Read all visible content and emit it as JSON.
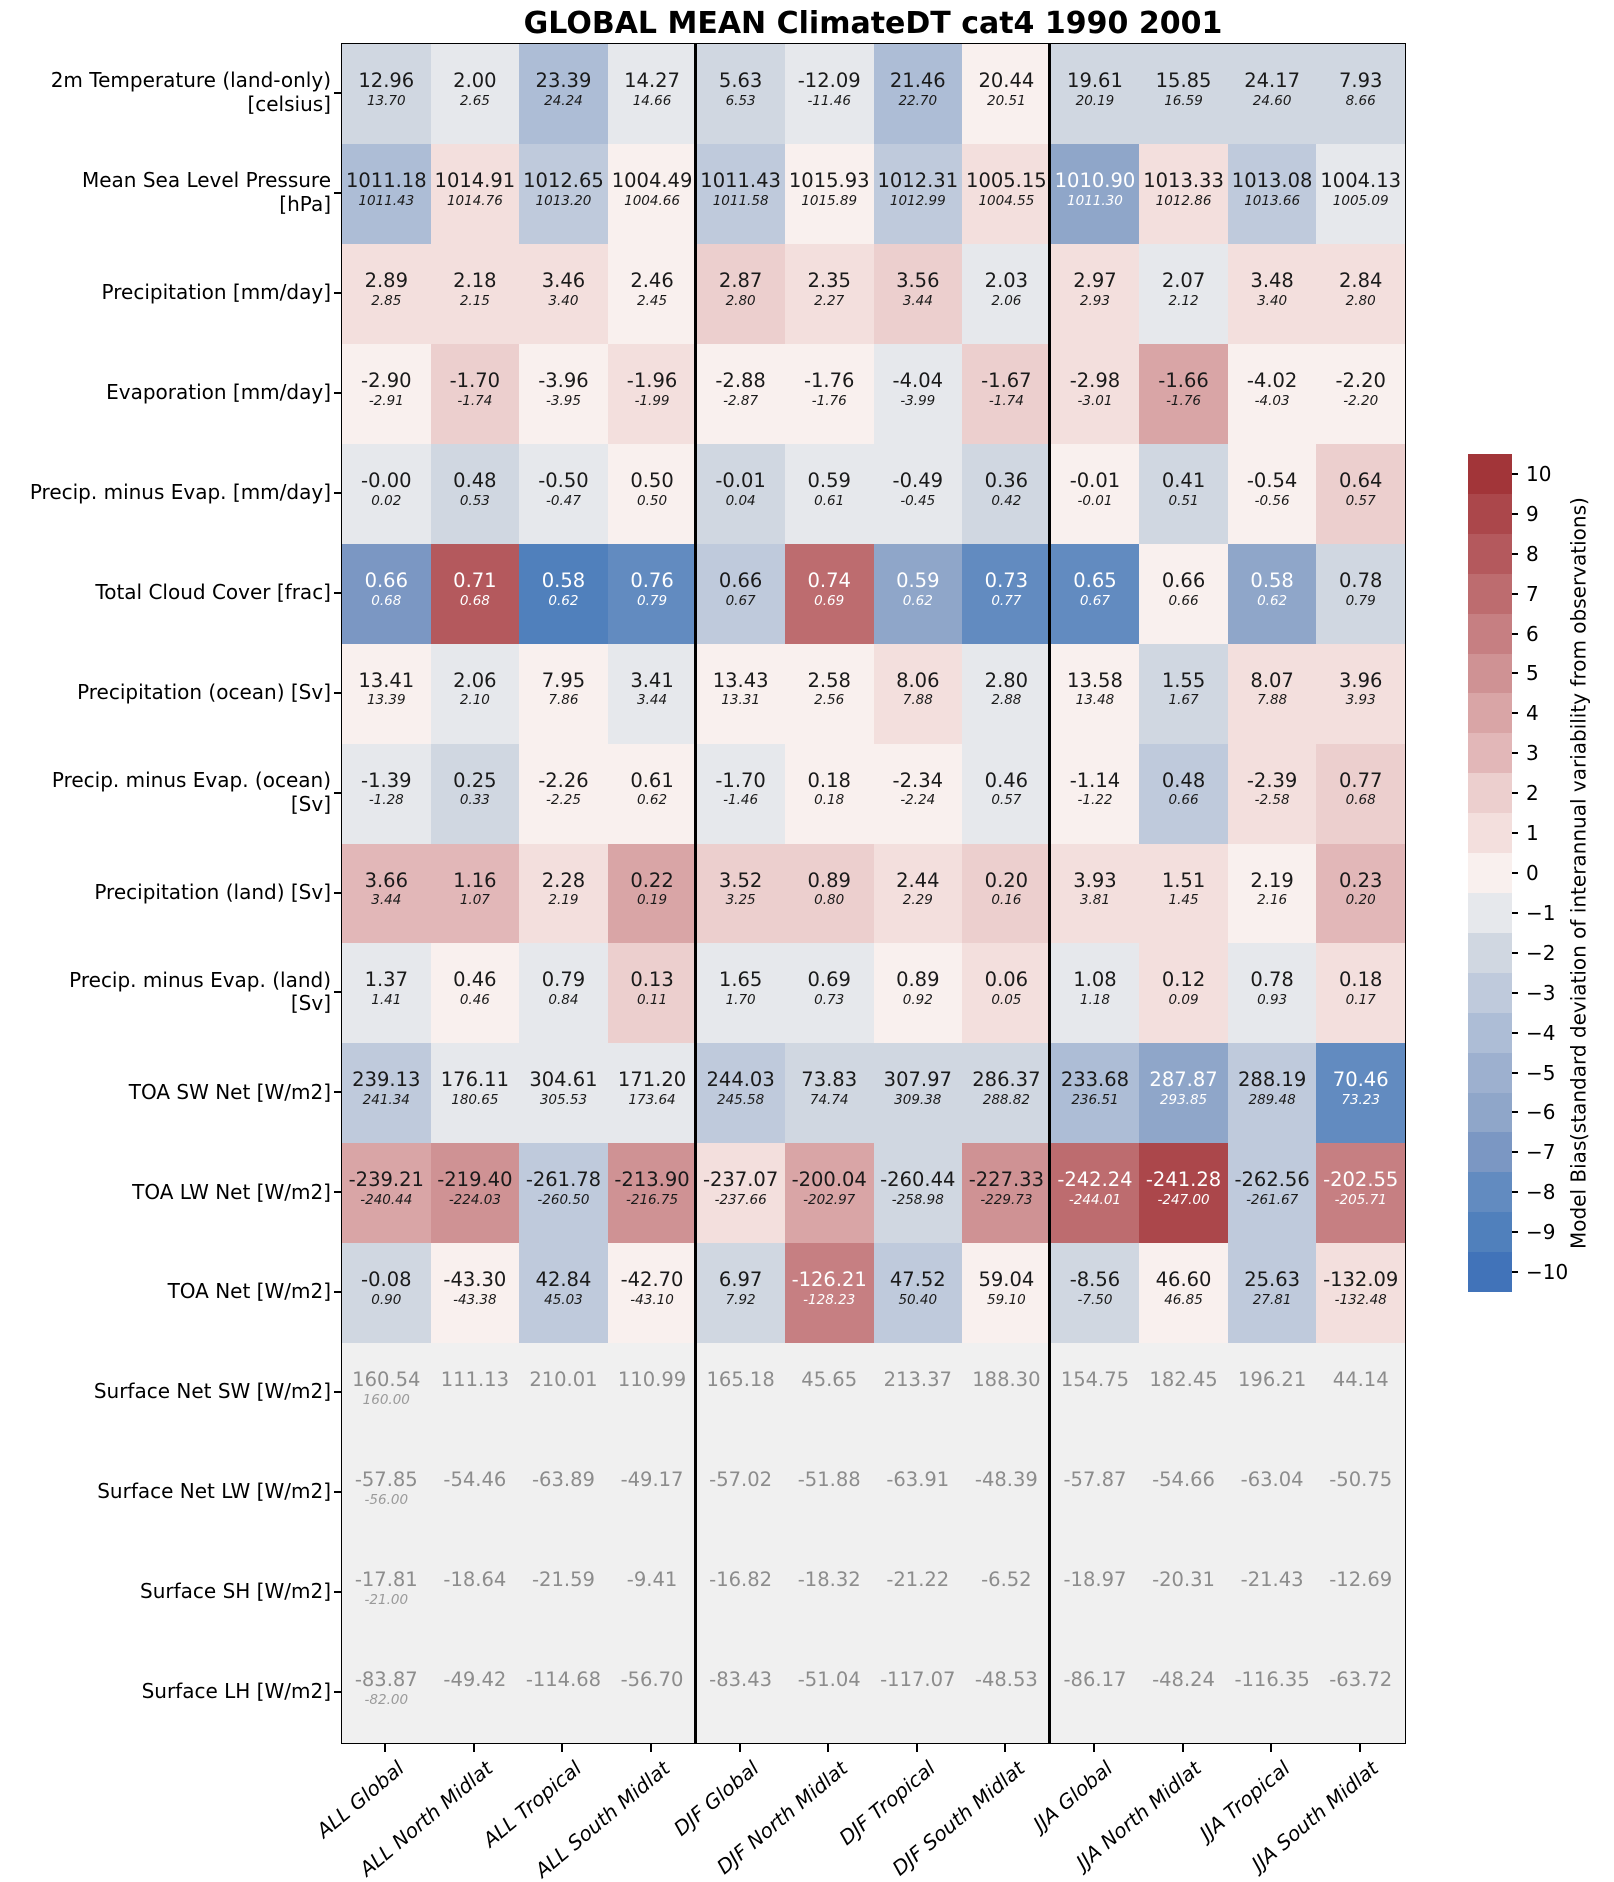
{
  "chart_data": {
    "type": "heatmap",
    "title": "GLOBAL MEAN ClimateDT cat4 1990 2001",
    "columns": [
      "ALL Global",
      "ALL North Midlat",
      "ALL Tropical",
      "ALL South Midlat",
      "DJF Global",
      "DJF North Midlat",
      "DJF Tropical",
      "DJF South Midlat",
      "JJA Global",
      "JJA North Midlat",
      "JJA Tropical",
      "JJA South Midlat"
    ],
    "cell_note": "each cell shows model value (top) and observed value (italic, below); cell color = model bias in std-dev units",
    "rows": [
      {
        "label": "2m Temperature (land-only)\n[celsius]",
        "values": [
          "12.96",
          "2.00",
          "23.39",
          "14.27",
          "5.63",
          "-12.09",
          "21.46",
          "20.44",
          "19.61",
          "15.85",
          "24.17",
          "7.93"
        ],
        "obs": [
          "13.70",
          "2.65",
          "24.24",
          "14.66",
          "6.53",
          "-11.46",
          "22.70",
          "20.51",
          "20.19",
          "16.59",
          "24.60",
          "8.66"
        ],
        "bias": [
          -2,
          -1,
          -4,
          -1,
          -2,
          -1,
          -4,
          0,
          -2,
          -2,
          -2,
          -2
        ]
      },
      {
        "label": "Mean Sea Level Pressure\n[hPa]",
        "values": [
          "1011.18",
          "1014.91",
          "1012.65",
          "1004.49",
          "1011.43",
          "1015.93",
          "1012.31",
          "1005.15",
          "1010.90",
          "1013.33",
          "1013.08",
          "1004.13"
        ],
        "obs": [
          "1011.43",
          "1014.76",
          "1013.20",
          "1004.66",
          "1011.58",
          "1015.89",
          "1012.99",
          "1004.55",
          "1011.30",
          "1012.86",
          "1013.66",
          "1005.09"
        ],
        "bias": [
          -4,
          1,
          -3,
          0,
          -3,
          0,
          -3,
          1,
          -6,
          1,
          -3,
          -1
        ]
      },
      {
        "label": "Precipitation [mm/day]",
        "values": [
          "2.89",
          "2.18",
          "3.46",
          "2.46",
          "2.87",
          "2.35",
          "3.56",
          "2.03",
          "2.97",
          "2.07",
          "3.48",
          "2.84"
        ],
        "obs": [
          "2.85",
          "2.15",
          "3.40",
          "2.45",
          "2.80",
          "2.27",
          "3.44",
          "2.06",
          "2.93",
          "2.12",
          "3.40",
          "2.80"
        ],
        "bias": [
          1,
          1,
          1,
          0,
          2,
          1,
          2,
          -1,
          1,
          -1,
          1,
          1
        ]
      },
      {
        "label": "Evaporation [mm/day]",
        "values": [
          "-2.90",
          "-1.70",
          "-3.96",
          "-1.96",
          "-2.88",
          "-1.76",
          "-4.04",
          "-1.67",
          "-2.98",
          "-1.66",
          "-4.02",
          "-2.20"
        ],
        "obs": [
          "-2.91",
          "-1.74",
          "-3.95",
          "-1.99",
          "-2.87",
          "-1.76",
          "-3.99",
          "-1.74",
          "-3.01",
          "-1.76",
          "-4.03",
          "-2.20"
        ],
        "bias": [
          0,
          2,
          0,
          1,
          0,
          0,
          -1,
          2,
          1,
          4,
          0,
          0
        ]
      },
      {
        "label": "Precip. minus Evap. [mm/day]",
        "values": [
          "-0.00",
          "0.48",
          "-0.50",
          "0.50",
          "-0.01",
          "0.59",
          "-0.49",
          "0.36",
          "-0.01",
          "0.41",
          "-0.54",
          "0.64"
        ],
        "obs": [
          "0.02",
          "0.53",
          "-0.47",
          "0.50",
          "0.04",
          "0.61",
          "-0.45",
          "0.42",
          "-0.01",
          "0.51",
          "-0.56",
          "0.57"
        ],
        "bias": [
          -1,
          -2,
          -1,
          0,
          -2,
          -1,
          -1,
          -2,
          0,
          -2,
          0,
          2
        ]
      },
      {
        "label": "Total Cloud Cover [frac]",
        "values": [
          "0.66",
          "0.71",
          "0.58",
          "0.76",
          "0.66",
          "0.74",
          "0.59",
          "0.73",
          "0.65",
          "0.66",
          "0.58",
          "0.78"
        ],
        "obs": [
          "0.68",
          "0.68",
          "0.62",
          "0.79",
          "0.67",
          "0.69",
          "0.62",
          "0.77",
          "0.67",
          "0.66",
          "0.62",
          "0.79"
        ],
        "bias": [
          -7,
          8,
          -9,
          -8,
          -3,
          7,
          -6,
          -8,
          -8,
          0,
          -6,
          -2
        ]
      },
      {
        "label": "Precipitation (ocean) [Sv]",
        "values": [
          "13.41",
          "2.06",
          "7.95",
          "3.41",
          "13.43",
          "2.58",
          "8.06",
          "2.80",
          "13.58",
          "1.55",
          "8.07",
          "3.96"
        ],
        "obs": [
          "13.39",
          "2.10",
          "7.86",
          "3.44",
          "13.31",
          "2.56",
          "7.88",
          "2.88",
          "13.48",
          "1.67",
          "7.88",
          "3.93"
        ],
        "bias": [
          0,
          -1,
          0,
          -1,
          0,
          0,
          1,
          -1,
          0,
          -2,
          1,
          1
        ]
      },
      {
        "label": "Precip. minus Evap. (ocean)\n[Sv]",
        "values": [
          "-1.39",
          "0.25",
          "-2.26",
          "0.61",
          "-1.70",
          "0.18",
          "-2.34",
          "0.46",
          "-1.14",
          "0.48",
          "-2.39",
          "0.77"
        ],
        "obs": [
          "-1.28",
          "0.33",
          "-2.25",
          "0.62",
          "-1.46",
          "0.18",
          "-2.24",
          "0.57",
          "-1.22",
          "0.66",
          "-2.58",
          "0.68"
        ],
        "bias": [
          -1,
          -2,
          0,
          0,
          -1,
          0,
          0,
          -1,
          0,
          -3,
          1,
          2
        ]
      },
      {
        "label": "Precipitation (land) [Sv]",
        "values": [
          "3.66",
          "1.16",
          "2.28",
          "0.22",
          "3.52",
          "0.89",
          "2.44",
          "0.20",
          "3.93",
          "1.51",
          "2.19",
          "0.23"
        ],
        "obs": [
          "3.44",
          "1.07",
          "2.19",
          "0.19",
          "3.25",
          "0.80",
          "2.29",
          "0.16",
          "3.81",
          "1.45",
          "2.16",
          "0.20"
        ],
        "bias": [
          3,
          3,
          1,
          4,
          2,
          2,
          1,
          2,
          1,
          1,
          0,
          3
        ]
      },
      {
        "label": "Precip. minus Evap. (land)\n[Sv]",
        "values": [
          "1.37",
          "0.46",
          "0.79",
          "0.13",
          "1.65",
          "0.69",
          "0.89",
          "0.06",
          "1.08",
          "0.12",
          "0.78",
          "0.18"
        ],
        "obs": [
          "1.41",
          "0.46",
          "0.84",
          "0.11",
          "1.70",
          "0.73",
          "0.92",
          "0.05",
          "1.18",
          "0.09",
          "0.93",
          "0.17"
        ],
        "bias": [
          -1,
          0,
          -1,
          2,
          -1,
          -1,
          0,
          1,
          -1,
          1,
          -1,
          1
        ]
      },
      {
        "label": "TOA SW Net [W/m2]",
        "values": [
          "239.13",
          "176.11",
          "304.61",
          "171.20",
          "244.03",
          "73.83",
          "307.97",
          "286.37",
          "233.68",
          "287.87",
          "288.19",
          "70.46"
        ],
        "obs": [
          "241.34",
          "180.65",
          "305.53",
          "173.64",
          "245.58",
          "74.74",
          "309.38",
          "288.82",
          "236.51",
          "293.85",
          "289.48",
          "73.23"
        ],
        "bias": [
          -3,
          -1,
          -1,
          -1,
          -3,
          -2,
          -2,
          -2,
          -4,
          -6,
          -3,
          -8
        ]
      },
      {
        "label": "TOA LW Net [W/m2]",
        "values": [
          "-239.21",
          "-219.40",
          "-261.78",
          "-213.90",
          "-237.07",
          "-200.04",
          "-260.44",
          "-227.33",
          "-242.24",
          "-241.28",
          "-262.56",
          "-202.55"
        ],
        "obs": [
          "-240.44",
          "-224.03",
          "-260.50",
          "-216.75",
          "-237.66",
          "-202.97",
          "-258.98",
          "-229.73",
          "-244.01",
          "-247.00",
          "-261.67",
          "-205.71"
        ],
        "bias": [
          4,
          5,
          -3,
          5,
          1,
          4,
          -2,
          5,
          7,
          9,
          -3,
          6
        ]
      },
      {
        "label": "TOA Net [W/m2]",
        "values": [
          "-0.08",
          "-43.30",
          "42.84",
          "-42.70",
          "6.97",
          "-126.21",
          "47.52",
          "59.04",
          "-8.56",
          "46.60",
          "25.63",
          "-132.09"
        ],
        "obs": [
          "0.90",
          "-43.38",
          "45.03",
          "-43.10",
          "7.92",
          "-128.23",
          "50.40",
          "59.10",
          "-7.50",
          "46.85",
          "27.81",
          "-132.48"
        ],
        "bias": [
          -2,
          0,
          -3,
          0,
          -2,
          6,
          -3,
          0,
          -2,
          0,
          -3,
          1
        ]
      },
      {
        "label": "Surface Net SW [W/m2]",
        "values": [
          "160.54",
          "111.13",
          "210.01",
          "110.99",
          "165.18",
          "45.65",
          "213.37",
          "188.30",
          "154.75",
          "182.45",
          "196.21",
          "44.14"
        ],
        "obs": [
          "160.00",
          null,
          null,
          null,
          null,
          null,
          null,
          null,
          null,
          null,
          null,
          null
        ],
        "bias": null
      },
      {
        "label": "Surface Net LW [W/m2]",
        "values": [
          "-57.85",
          "-54.46",
          "-63.89",
          "-49.17",
          "-57.02",
          "-51.88",
          "-63.91",
          "-48.39",
          "-57.87",
          "-54.66",
          "-63.04",
          "-50.75"
        ],
        "obs": [
          "-56.00",
          null,
          null,
          null,
          null,
          null,
          null,
          null,
          null,
          null,
          null,
          null
        ],
        "bias": null
      },
      {
        "label": "Surface SH [W/m2]",
        "values": [
          "-17.81",
          "-18.64",
          "-21.59",
          "-9.41",
          "-16.82",
          "-18.32",
          "-21.22",
          "-6.52",
          "-18.97",
          "-20.31",
          "-21.43",
          "-12.69"
        ],
        "obs": [
          "-21.00",
          null,
          null,
          null,
          null,
          null,
          null,
          null,
          null,
          null,
          null,
          null
        ],
        "bias": null
      },
      {
        "label": "Surface LH [W/m2]",
        "values": [
          "-83.87",
          "-49.42",
          "-114.68",
          "-56.70",
          "-83.43",
          "-51.04",
          "-117.07",
          "-48.53",
          "-86.17",
          "-48.24",
          "-116.35",
          "-63.72"
        ],
        "obs": [
          "-82.00",
          null,
          null,
          null,
          null,
          null,
          null,
          null,
          null,
          null,
          null,
          null
        ],
        "bias": null
      }
    ],
    "colorbar": {
      "label_line1": "Model Bias",
      "label_line2": "(standard deviation of interannual variability from observations)",
      "ticks": [
        "10",
        "9",
        "8",
        "7",
        "6",
        "5",
        "4",
        "3",
        "2",
        "1",
        "0",
        "−1",
        "−2",
        "−3",
        "−4",
        "−5",
        "−6",
        "−7",
        "−8",
        "−9",
        "−10"
      ],
      "range": [
        -10,
        10
      ]
    }
  },
  "palette": {
    "note": "21 discrete bias colors ordered from -10 (blue) to +10 (red)",
    "colors": [
      "#4173b9",
      "#5080bc",
      "#628bc0",
      "#7b97c3",
      "#8fa6c9",
      "#9db0cf",
      "#adbdd6",
      "#bfcadc",
      "#d0d7e1",
      "#e6e8ec",
      "#f9f0ee",
      "#f3dfdd",
      "#eccfce",
      "#e2b7b8",
      "#d9a5a6",
      "#cf9294",
      "#c67f82",
      "#bd6c6f",
      "#b4595d",
      "#ab474b",
      "#a23539"
    ],
    "white_text_threshold": 6,
    "gray_row_bg": "#f0f0f0",
    "gray_row_text": "#8c8c8c",
    "gray_row_obs_text": "#9a9a9a",
    "cell_text": "#1a1a1a",
    "cell_text_light": "#ffffff"
  }
}
